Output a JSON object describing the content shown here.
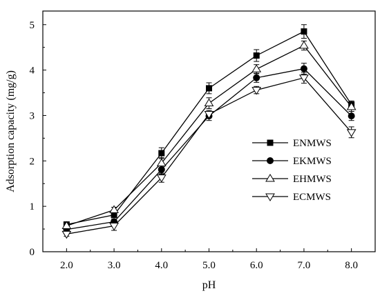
{
  "chart_data": {
    "type": "line",
    "title": "",
    "xlabel": "pH",
    "ylabel": "Adsorption capacity (mg/g)",
    "x": [
      2.0,
      3.0,
      4.0,
      5.0,
      6.0,
      7.0,
      8.0
    ],
    "x_tick_labels": [
      "2.0",
      "3.0",
      "4.0",
      "5.0",
      "6.0",
      "7.0",
      "8.0"
    ],
    "y_tick_labels": [
      "0",
      "1",
      "2",
      "3",
      "4",
      "5"
    ],
    "xlim": [
      1.5,
      8.5
    ],
    "ylim": [
      0,
      5.3
    ],
    "grid": false,
    "legend_position": "right",
    "series": [
      {
        "name": "ENMWS",
        "marker": "filled-square",
        "values": [
          0.6,
          0.81,
          2.17,
          3.6,
          4.32,
          4.85,
          3.24
        ],
        "errors": [
          0.05,
          0.06,
          0.12,
          0.12,
          0.13,
          0.15,
          0.08
        ]
      },
      {
        "name": "EKMWS",
        "marker": "filled-circle",
        "values": [
          0.49,
          0.66,
          1.81,
          2.99,
          3.83,
          4.03,
          2.99
        ],
        "errors": [
          0.05,
          0.06,
          0.1,
          0.1,
          0.1,
          0.12,
          0.1
        ]
      },
      {
        "name": "EHMWS",
        "marker": "open-triangle-up",
        "values": [
          0.57,
          0.92,
          1.95,
          3.27,
          4.02,
          4.54,
          3.19
        ],
        "errors": [
          0.05,
          0.06,
          0.12,
          0.12,
          0.1,
          0.1,
          0.1
        ]
      },
      {
        "name": "ECMWS",
        "marker": "open-triangle-down",
        "values": [
          0.39,
          0.57,
          1.63,
          3.03,
          3.56,
          3.83,
          2.63
        ],
        "errors": [
          0.05,
          0.1,
          0.1,
          0.08,
          0.08,
          0.12,
          0.12
        ]
      }
    ]
  }
}
